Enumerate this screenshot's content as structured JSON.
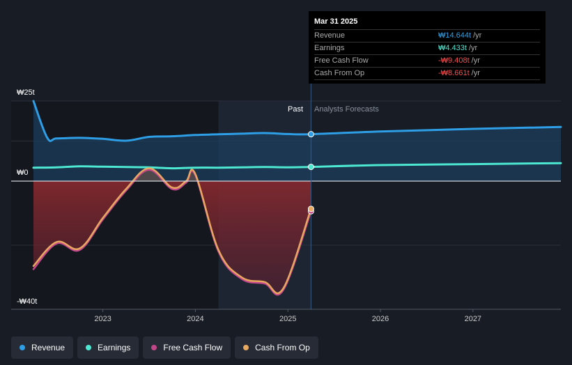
{
  "tooltip": {
    "date": "Mar 31 2025",
    "rows": [
      {
        "label": "Revenue",
        "value": "₩14.644t",
        "unit": "/yr",
        "color": "#2e9fe6"
      },
      {
        "label": "Earnings",
        "value": "₩4.433t",
        "unit": "/yr",
        "color": "#4de8d1"
      },
      {
        "label": "Free Cash Flow",
        "value": "-₩9.408t",
        "unit": "/yr",
        "color": "#ff4d4d"
      },
      {
        "label": "Cash From Op",
        "value": "-₩8.661t",
        "unit": "/yr",
        "color": "#ff4d4d"
      }
    ]
  },
  "regions": {
    "past": "Past",
    "forecast": "Analysts Forecasts"
  },
  "legend": [
    {
      "label": "Revenue",
      "color": "#2e9fe6"
    },
    {
      "label": "Earnings",
      "color": "#4de8d1"
    },
    {
      "label": "Free Cash Flow",
      "color": "#c2478a"
    },
    {
      "label": "Cash From Op",
      "color": "#e8a860"
    }
  ],
  "chart_data": {
    "type": "line",
    "y_tick_labels": [
      "₩25t",
      "₩0",
      "-₩40t"
    ],
    "ylim": [
      -40,
      25
    ],
    "x_tick_labels": [
      "2023",
      "2024",
      "2025",
      "2026",
      "2027"
    ],
    "xlim": [
      2022.25,
      2027.95
    ],
    "past_end": 2025.25,
    "series": [
      {
        "name": "Revenue",
        "color": "#2e9fe6",
        "x": [
          2022.25,
          2022.4,
          2022.5,
          2022.75,
          2023.0,
          2023.25,
          2023.5,
          2023.75,
          2024.0,
          2024.25,
          2024.5,
          2024.75,
          2025.0,
          2025.25,
          2026.0,
          2027.0,
          2027.95
        ],
        "y": [
          25,
          13.5,
          13.3,
          13.5,
          13.2,
          12.6,
          13.8,
          14.0,
          14.4,
          14.6,
          14.8,
          15.0,
          14.7,
          14.644,
          15.5,
          16.3,
          16.9
        ]
      },
      {
        "name": "Earnings",
        "color": "#4de8d1",
        "x": [
          2022.25,
          2022.5,
          2022.75,
          2023.0,
          2023.25,
          2023.5,
          2023.75,
          2024.0,
          2024.25,
          2024.5,
          2024.75,
          2025.0,
          2025.25,
          2026.0,
          2027.0,
          2027.95
        ],
        "y": [
          4.2,
          4.3,
          4.6,
          4.5,
          4.4,
          4.3,
          4.0,
          4.2,
          4.2,
          4.3,
          4.4,
          4.3,
          4.433,
          5.0,
          5.3,
          5.6
        ]
      },
      {
        "name": "Free Cash Flow",
        "color": "#c2478a",
        "x": [
          2022.25,
          2022.5,
          2022.75,
          2023.0,
          2023.25,
          2023.5,
          2023.75,
          2023.9,
          2024.0,
          2024.25,
          2024.5,
          2024.75,
          2024.95,
          2025.25
        ],
        "y": [
          -27.5,
          -19.5,
          -21.5,
          -12.0,
          -3.0,
          3.5,
          -2.5,
          -0.5,
          1.8,
          -22.0,
          -30.5,
          -32.0,
          -34.0,
          -9.408
        ]
      },
      {
        "name": "Cash From Op",
        "color": "#e8a860",
        "x": [
          2022.25,
          2022.5,
          2022.75,
          2023.0,
          2023.25,
          2023.5,
          2023.75,
          2023.9,
          2024.0,
          2024.25,
          2024.5,
          2024.75,
          2024.95,
          2025.25
        ],
        "y": [
          -26.5,
          -19.0,
          -21.0,
          -11.5,
          -2.5,
          4.0,
          -2.0,
          0.0,
          2.2,
          -21.5,
          -30.0,
          -31.5,
          -33.5,
          -8.661
        ]
      }
    ]
  }
}
